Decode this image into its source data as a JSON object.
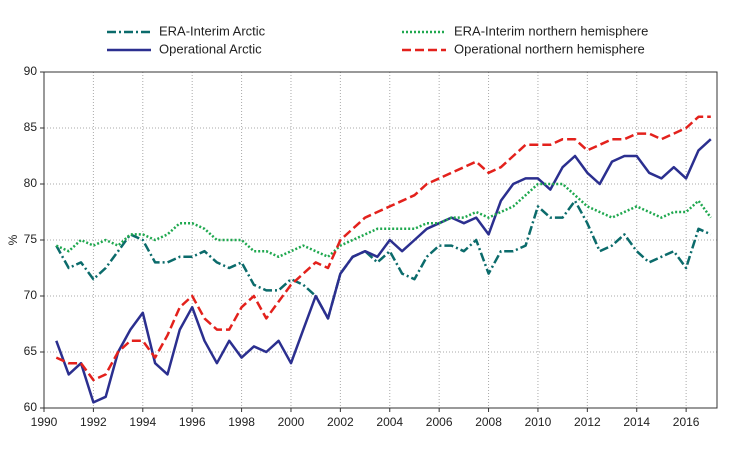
{
  "chart_data": {
    "type": "line",
    "y_label": "%",
    "x": [
      1990.5,
      1991,
      1991.5,
      1992,
      1992.5,
      1993,
      1993.5,
      1994,
      1994.5,
      1995,
      1995.5,
      1996,
      1996.5,
      1997,
      1997.5,
      1998,
      1998.5,
      1999,
      1999.5,
      2000,
      2000.5,
      2001,
      2001.5,
      2002,
      2002.5,
      2003,
      2003.5,
      2004,
      2004.5,
      2005,
      2005.5,
      2006,
      2006.5,
      2007,
      2007.5,
      2008,
      2008.5,
      2009,
      2009.5,
      2010,
      2010.5,
      2011,
      2011.5,
      2012,
      2012.5,
      2013,
      2013.5,
      2014,
      2014.5,
      2015,
      2015.5,
      2016,
      2016.5,
      2017
    ],
    "series": [
      {
        "name": "ERA-Interim Arctic",
        "color": "#0b6b6b",
        "linestyle": "dashdot",
        "values": [
          74.5,
          72.5,
          73,
          71.5,
          72.5,
          74,
          75.5,
          75,
          73,
          73,
          73.5,
          73.5,
          74,
          73,
          72.5,
          73,
          71,
          70.5,
          70.5,
          71.5,
          71,
          70,
          68,
          72,
          73.5,
          74,
          73,
          74,
          72,
          71.5,
          73.5,
          74.5,
          74.5,
          74,
          75,
          72,
          74,
          74,
          74.5,
          78,
          77,
          77,
          78.5,
          76.5,
          74,
          74.5,
          75.5,
          74,
          73,
          73.5,
          74,
          72.5,
          76,
          75.5
        ]
      },
      {
        "name": "Operational Arctic",
        "color": "#2b2f8f",
        "linestyle": "solid",
        "values": [
          66,
          63,
          64,
          60.5,
          61,
          65,
          67,
          68.5,
          64,
          63,
          67,
          69,
          66,
          64,
          66,
          64.5,
          65.5,
          65,
          66,
          64,
          67,
          70,
          68,
          72,
          73.5,
          74,
          73.5,
          75,
          74,
          75,
          76,
          76.5,
          77,
          76.5,
          77,
          75.5,
          78.5,
          80,
          80.5,
          80.5,
          79.5,
          81.5,
          82.5,
          81,
          80,
          82,
          82.5,
          82.5,
          81,
          80.5,
          81.5,
          80.5,
          83,
          84
        ]
      },
      {
        "name": "ERA-Interim northern hemisphere",
        "color": "#1fa84f",
        "linestyle": "dotted",
        "values": [
          74.5,
          74,
          75,
          74.5,
          75,
          74.5,
          75.5,
          75.5,
          75,
          75.5,
          76.5,
          76.5,
          76,
          75,
          75,
          75,
          74,
          74,
          73.5,
          74,
          74.5,
          74,
          73.5,
          74.5,
          75,
          75.5,
          76,
          76,
          76,
          76,
          76.5,
          76.5,
          77,
          77,
          77.5,
          77,
          77.5,
          78,
          79,
          80,
          80,
          80,
          79,
          78,
          77.5,
          77,
          77.5,
          78,
          77.5,
          77,
          77.5,
          77.5,
          78.5,
          77
        ]
      },
      {
        "name": "Operational northern hemisphere",
        "color": "#e3211c",
        "linestyle": "dashed",
        "values": [
          64.5,
          64,
          64,
          62.5,
          63,
          65,
          66,
          66,
          64.5,
          66.5,
          69,
          70,
          68,
          67,
          67,
          69,
          70,
          68,
          69.5,
          71,
          72,
          73,
          72.5,
          75,
          76,
          77,
          77.5,
          78,
          78.5,
          79,
          80,
          80.5,
          81,
          81.5,
          82,
          81,
          81.5,
          82.5,
          83.5,
          83.5,
          83.5,
          84,
          84,
          83,
          83.5,
          84,
          84,
          84.5,
          84.5,
          84,
          84.5,
          85,
          86,
          86
        ]
      }
    ],
    "xlim": [
      1990,
      2017.25
    ],
    "xticks": [
      1990,
      1992,
      1994,
      1996,
      1998,
      2000,
      2002,
      2004,
      2006,
      2008,
      2010,
      2012,
      2014,
      2016
    ],
    "ylim": [
      60,
      90
    ],
    "yticks": [
      60,
      65,
      70,
      75,
      80,
      85,
      90
    ],
    "grid": true
  }
}
